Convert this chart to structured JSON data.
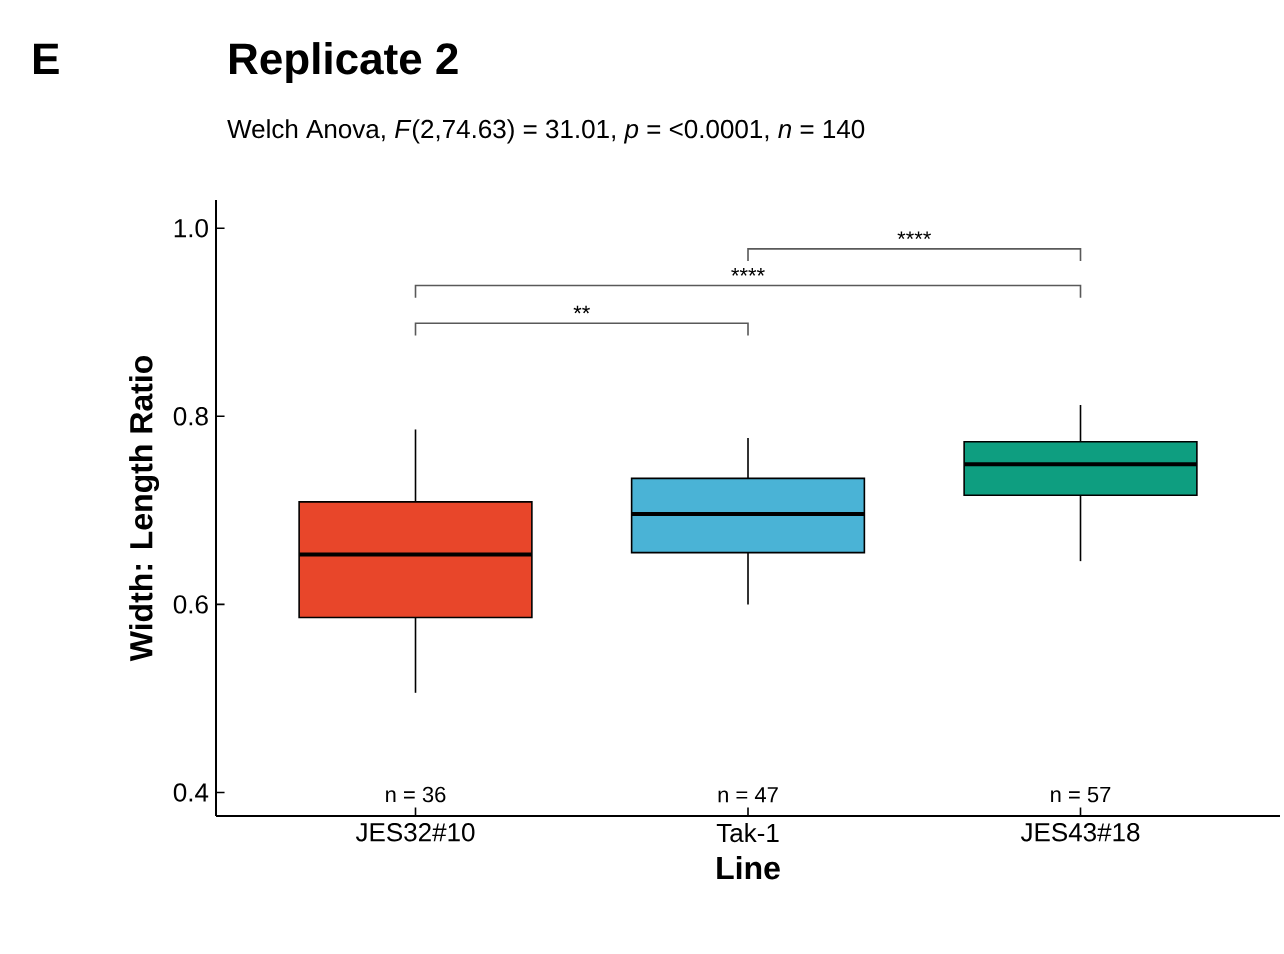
{
  "chart_data": {
    "type": "box",
    "title": "Replicate 2",
    "subtitle": "Welch Anova, *F*(2,74.63) = 31.01, *p* = <0.0001, *n* = 140",
    "xlabel": "Line",
    "ylabel": "Width: Length Ratio",
    "categories": [
      "JES32#10",
      "Tak-1",
      "JES43#18"
    ],
    "colors": [
      "#e8462a",
      "#4ab3d6",
      "#0e9e80"
    ],
    "boxes": [
      {
        "low": 0.506,
        "q1": 0.586,
        "median": 0.653,
        "q3": 0.709,
        "high": 0.786
      },
      {
        "low": 0.6,
        "q1": 0.655,
        "median": 0.696,
        "q3": 0.734,
        "high": 0.777
      },
      {
        "low": 0.646,
        "q1": 0.716,
        "median": 0.749,
        "q3": 0.773,
        "high": 0.812
      }
    ],
    "ylim": [
      0.375,
      1.03
    ],
    "yticks": [
      0.4,
      0.6,
      0.8,
      {
        "value": 1.0,
        "label": "1.0"
      }
    ],
    "grid": false,
    "annotations": [
      "E",
      "**",
      "****",
      "****",
      "n = 36",
      "n = 47",
      "n = 57"
    ]
  }
}
